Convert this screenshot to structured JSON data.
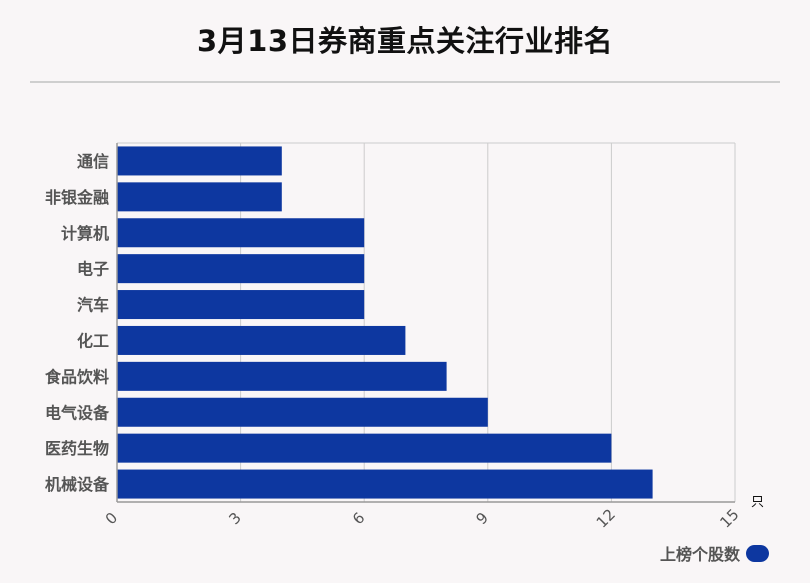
{
  "colors": {
    "bar": "#0d37a0",
    "grid": "#cccccc",
    "axis": "#999999"
  },
  "chart_data": {
    "type": "bar",
    "orientation": "horizontal",
    "title": "3月13日券商重点关注行业排名",
    "categories": [
      "通信",
      "非银金融",
      "计算机",
      "电子",
      "汽车",
      "化工",
      "食品饮料",
      "电气设备",
      "医药生物",
      "机械设备"
    ],
    "series": [
      {
        "name": "上榜个股数",
        "values": [
          4,
          4,
          6,
          6,
          6,
          7,
          8,
          9,
          12,
          13
        ]
      }
    ],
    "xlim": [
      0,
      15
    ],
    "xticks": [
      0,
      3,
      6,
      9,
      12,
      15
    ],
    "xunit": "只",
    "grid": true,
    "legend_position": "bottom-right"
  }
}
